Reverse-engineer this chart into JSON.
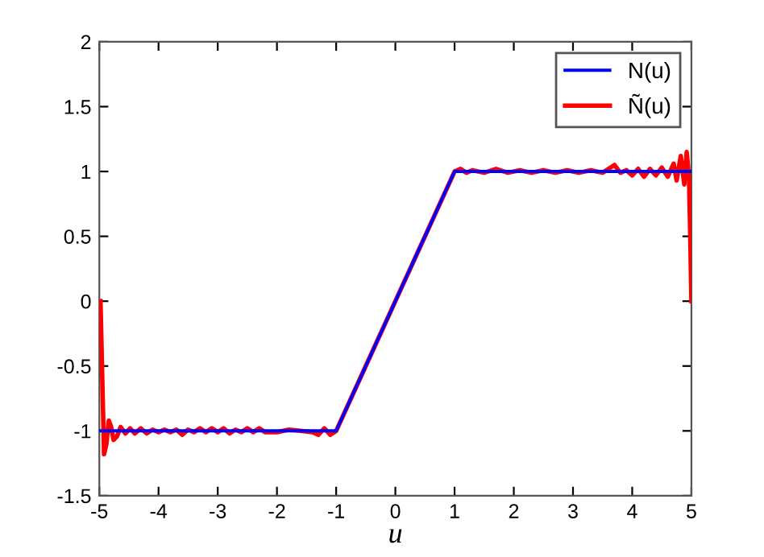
{
  "chart_data": {
    "type": "line",
    "xlabel": "u",
    "xlim": [
      -5,
      5
    ],
    "xticks": [
      -5,
      -4,
      -3,
      -2,
      -1,
      0,
      1,
      2,
      3,
      4,
      5
    ],
    "ylim": [
      -1.5,
      2
    ],
    "yticks": [
      -1.5,
      -1,
      -0.5,
      0,
      0.5,
      1,
      1.5,
      2
    ],
    "grid": false,
    "legend": "top right",
    "series": [
      {
        "name": "N(u)",
        "color": "#0000ff",
        "x": [
          -5,
          -1,
          1,
          5
        ],
        "values": [
          -1,
          -1,
          1,
          1
        ]
      },
      {
        "name": "Ñ(u)",
        "color": "#ff0000",
        "x": [
          -4.98,
          -4.95,
          -4.92,
          -4.88,
          -4.84,
          -4.8,
          -4.76,
          -4.7,
          -4.64,
          -4.56,
          -4.48,
          -4.4,
          -4.3,
          -4.2,
          -4.1,
          -4.0,
          -3.9,
          -3.8,
          -3.7,
          -3.6,
          -3.5,
          -3.4,
          -3.3,
          -3.2,
          -3.1,
          -3.0,
          -2.9,
          -2.8,
          -2.7,
          -2.6,
          -2.5,
          -2.4,
          -2.3,
          -2.2,
          -2.0,
          -1.8,
          -1.6,
          -1.4,
          -1.3,
          -1.2,
          -1.1,
          -1.0,
          -0.5,
          0,
          0.5,
          1.0,
          1.1,
          1.2,
          1.3,
          1.5,
          1.7,
          1.9,
          2.1,
          2.3,
          2.5,
          2.7,
          2.9,
          3.1,
          3.3,
          3.5,
          3.7,
          3.8,
          3.9,
          4.0,
          4.1,
          4.2,
          4.3,
          4.4,
          4.5,
          4.6,
          4.7,
          4.75,
          4.82,
          4.88,
          4.92,
          4.96,
          4.98,
          5.0
        ],
        "values": [
          0.0,
          -0.6,
          -1.18,
          -1.1,
          -0.92,
          -0.97,
          -1.07,
          -1.04,
          -0.97,
          -1.02,
          -0.98,
          -1.02,
          -0.98,
          -1.02,
          -0.99,
          -1.01,
          -0.99,
          -1.01,
          -0.99,
          -1.03,
          -0.99,
          -1.01,
          -0.98,
          -1.01,
          -0.98,
          -1.01,
          -0.98,
          -1.02,
          -0.99,
          -1.01,
          -0.98,
          -1.01,
          -0.98,
          -1.01,
          -1.01,
          -0.99,
          -1.0,
          -1.01,
          -1.03,
          -0.98,
          -1.03,
          -1.0,
          -0.5,
          0,
          0.5,
          1.0,
          1.02,
          0.99,
          1.01,
          0.99,
          1.02,
          0.99,
          1.01,
          0.99,
          1.01,
          0.99,
          1.01,
          0.99,
          1.01,
          0.99,
          1.05,
          0.99,
          1.01,
          0.97,
          1.02,
          0.96,
          1.02,
          0.97,
          1.03,
          0.96,
          1.06,
          0.93,
          1.12,
          0.9,
          1.15,
          0.95,
          0.5,
          0.0
        ]
      }
    ]
  }
}
